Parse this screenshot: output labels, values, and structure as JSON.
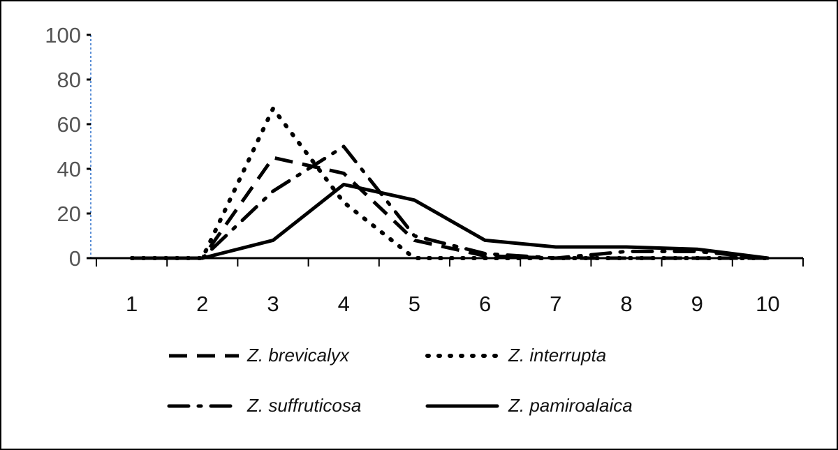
{
  "chart_data": {
    "type": "line",
    "title": "",
    "xlabel": "",
    "ylabel": "",
    "x": [
      1,
      2,
      3,
      4,
      5,
      6,
      7,
      8,
      9,
      10
    ],
    "x_tick_labels": [
      "1",
      "2",
      "3",
      "4",
      "5",
      "6",
      "7",
      "8",
      "9",
      "10"
    ],
    "y_tick_labels": [
      "0",
      "20",
      "40",
      "60",
      "80",
      "100"
    ],
    "ylim": [
      0,
      100
    ],
    "grid": false,
    "legend_placement": "bottom",
    "series": [
      {
        "name": "Z. brevicalyx",
        "style": "dashed",
        "color": "#000000",
        "values": [
          0,
          0,
          45,
          38,
          8,
          1,
          0,
          0,
          0,
          0
        ]
      },
      {
        "name": "Z. interrupta",
        "style": "dotted",
        "color": "#000000",
        "values": [
          0,
          0,
          67,
          25,
          0,
          0,
          0,
          0,
          0,
          0
        ]
      },
      {
        "name": "Z. suffruticosa",
        "style": "dash-dot",
        "color": "#000000",
        "values": [
          0,
          0,
          30,
          50,
          10,
          2,
          0,
          3,
          3,
          0
        ]
      },
      {
        "name": "Z. pamiroalaica",
        "style": "solid",
        "color": "#000000",
        "values": [
          0,
          0,
          8,
          33,
          26,
          8,
          5,
          5,
          4,
          0
        ]
      }
    ],
    "y_axis_color": "#5b8fd6"
  }
}
